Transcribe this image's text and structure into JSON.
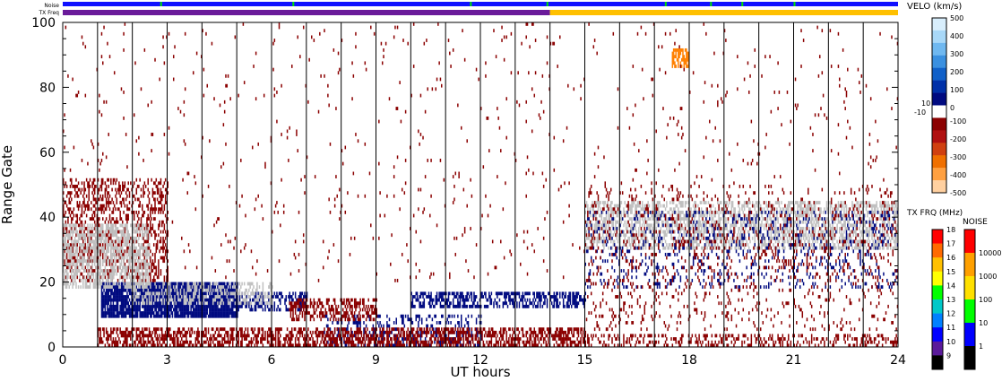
{
  "chart_data": {
    "type": "heatmap",
    "title": "",
    "xlabel": "UT hours",
    "ylabel": "Range Gate",
    "xlim": [
      0,
      24
    ],
    "ylim": [
      0,
      100
    ],
    "x_ticks": [
      0,
      3,
      6,
      9,
      12,
      15,
      18,
      21,
      24
    ],
    "y_ticks": [
      0,
      20,
      40,
      60,
      80,
      100
    ],
    "x_tick_labels": [
      "0",
      "3",
      "6",
      "9",
      "12",
      "15",
      "18",
      "21",
      "24"
    ],
    "y_tick_labels": [
      "0",
      "20",
      "40",
      "60",
      "80",
      "100"
    ],
    "hour_gridlines": [
      1,
      2,
      3,
      4,
      5,
      6,
      7,
      8,
      9,
      10,
      11,
      12,
      13,
      14,
      15,
      16,
      17,
      18,
      19,
      20,
      21,
      22,
      23
    ],
    "grid": false,
    "top_strips": {
      "noise_label": "Noise",
      "txfreq_label": "TX Freq",
      "noise_color": "#1010ff",
      "noise_green_hours": [
        2.8,
        6.6,
        11.7,
        13.9,
        17.3,
        18.6,
        19.5,
        21.0
      ],
      "txfreq_segments": [
        {
          "start": 0,
          "end": 14,
          "color": "#6a1b9a"
        },
        {
          "start": 14,
          "end": 24,
          "color": "#ffc000"
        }
      ]
    },
    "regions": [
      {
        "name": "blue-band-a",
        "x": [
          1.1,
          5.0
        ],
        "y": [
          9,
          20
        ],
        "color": "#000a80",
        "density": 0.88
      },
      {
        "name": "blue-band-b",
        "x": [
          5.0,
          7.0
        ],
        "y": [
          11,
          17
        ],
        "color": "#000a80",
        "density": 0.45
      },
      {
        "name": "blue-band-c",
        "x": [
          10.0,
          15.0
        ],
        "y": [
          12,
          17
        ],
        "color": "#000a80",
        "density": 0.55
      },
      {
        "name": "blue-ground-a",
        "x": [
          7.5,
          12.0
        ],
        "y": [
          0,
          10
        ],
        "color": "#000a80",
        "density": 0.25
      },
      {
        "name": "red-ground",
        "x": [
          1.0,
          15.0
        ],
        "y": [
          0,
          6
        ],
        "color": "#8b0000",
        "density": 0.55
      },
      {
        "name": "red-ground-late",
        "x": [
          15.0,
          24.0
        ],
        "y": [
          0,
          4
        ],
        "color": "#8b0000",
        "density": 0.3
      },
      {
        "name": "red-band",
        "x": [
          6.5,
          9.0
        ],
        "y": [
          8,
          15
        ],
        "color": "#8b0000",
        "density": 0.45
      },
      {
        "name": "red-early",
        "x": [
          0,
          3.0
        ],
        "y": [
          20,
          52
        ],
        "color": "#8b0000",
        "density": 0.35
      },
      {
        "name": "grey-early",
        "x": [
          0,
          2.5
        ],
        "y": [
          18,
          38
        ],
        "color": "#c0c0c0",
        "density": 0.55
      },
      {
        "name": "grey-band-mid",
        "x": [
          2.0,
          6.0
        ],
        "y": [
          13,
          20
        ],
        "color": "#c0c0c0",
        "density": 0.4
      },
      {
        "name": "grey-late-band",
        "x": [
          15.0,
          24.0
        ],
        "y": [
          30,
          45
        ],
        "color": "#c0c0c0",
        "density": 0.5
      },
      {
        "name": "blue-late",
        "x": [
          15.0,
          24.0
        ],
        "y": [
          18,
          42
        ],
        "color": "#000a80",
        "density": 0.12
      },
      {
        "name": "red-late",
        "x": [
          15.0,
          24.0
        ],
        "y": [
          5,
          50
        ],
        "color": "#8b0000",
        "density": 0.08
      },
      {
        "name": "orange-late",
        "x": [
          17.5,
          18.0
        ],
        "y": [
          86,
          92
        ],
        "color": "#ff8000",
        "density": 0.7
      },
      {
        "name": "scatter",
        "x": [
          0,
          24
        ],
        "y": [
          20,
          100
        ],
        "color": "#8b0000",
        "density": 0.015
      }
    ],
    "velo_colorbar": {
      "title": "VELO (km/s)",
      "tick_labels": [
        "500",
        "400",
        "300",
        "200",
        "100",
        "10",
        "0",
        "-10",
        "-100",
        "-200",
        "-300",
        "-400",
        "-500"
      ],
      "colors": [
        "#d8eefc",
        "#a8d8f8",
        "#6fb8f0",
        "#3a90e0",
        "#1060c8",
        "#0030a8",
        "#000a80",
        "#ffffff",
        "#8b0000",
        "#b01010",
        "#d04010",
        "#f07000",
        "#ffa040",
        "#ffd0a0"
      ]
    },
    "txfrq_colorbar": {
      "title": "TX FRQ (MHz)",
      "tick_labels": [
        "18",
        "17",
        "16",
        "15",
        "14",
        "13",
        "12",
        "11",
        "10",
        "9"
      ],
      "colors": [
        "#ff0000",
        "#ff6a00",
        "#ffc000",
        "#ffff00",
        "#00ff00",
        "#00c8c8",
        "#0080ff",
        "#0000ff",
        "#5a1a9a",
        "#000000"
      ]
    },
    "noise_colorbar": {
      "title": "NOISE",
      "tick_labels": [
        "10000",
        "1000",
        "100",
        "10",
        "1"
      ],
      "colors": [
        "#ff0000",
        "#ffa000",
        "#ffe000",
        "#00ff00",
        "#0000ff",
        "#000000"
      ]
    }
  }
}
